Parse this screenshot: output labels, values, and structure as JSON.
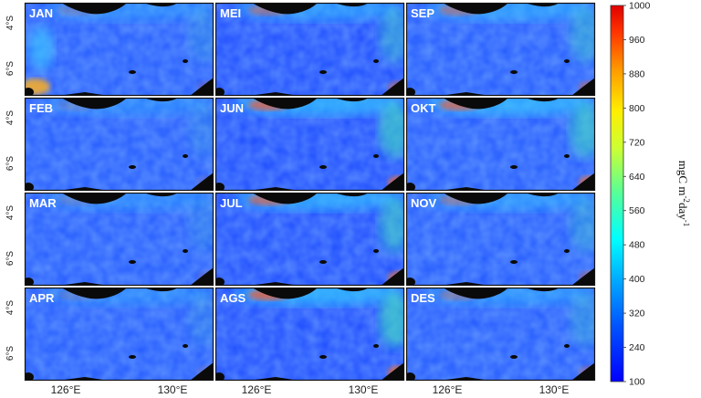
{
  "figure": {
    "y_tick_labels": [
      "4°S",
      "6°S"
    ],
    "x_tick_labels": [
      "126°E",
      "130°E"
    ],
    "months": [
      [
        "JAN",
        "MEI",
        "SEP"
      ],
      [
        "FEB",
        "JUN",
        "OKT"
      ],
      [
        "MAR",
        "JUL",
        "NOV"
      ],
      [
        "APR",
        "AGS",
        "DES"
      ]
    ],
    "colorbar": {
      "min": 100,
      "max": 1000,
      "tick_values": [
        100,
        240,
        320,
        400,
        480,
        560,
        640,
        720,
        800,
        880,
        960,
        1000
      ],
      "tick_labels": [
        "100",
        "240",
        "320",
        "400",
        "480",
        "560",
        "640",
        "720",
        "800",
        "880",
        "960",
        "1000"
      ],
      "unit_main": "mgC m",
      "unit_sup1": "-2",
      "unit_mid": "day",
      "unit_sup2": "-1",
      "colormap": "jet"
    },
    "colors": {
      "land": "#0a0a0a",
      "low": "#1a3cff",
      "mid": "#3aa8ff",
      "high": "#ff3a12"
    }
  }
}
